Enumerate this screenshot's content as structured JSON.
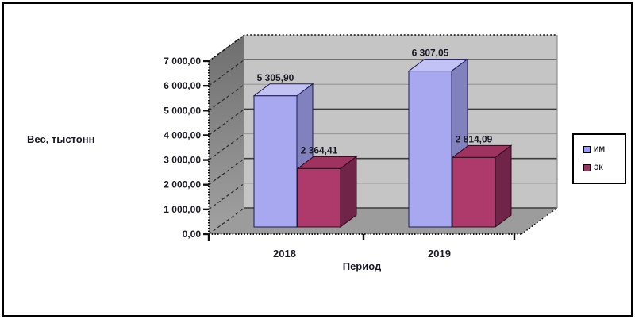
{
  "window": {
    "background": "#ffffff",
    "frame_border_color": "#000000",
    "wall_color": "#c5c5c5",
    "side_wall_color": "#8a8a8a",
    "floor_color": "#9c9c9c"
  },
  "chart_data": {
    "type": "bar",
    "style": "3d-clustered-column",
    "title": "",
    "categories": [
      "2018",
      "2019"
    ],
    "series": [
      {
        "name": "ИМ",
        "color": "#9999ff",
        "face_colors": {
          "front": "#a8a8f0",
          "top": "#c2c2f5",
          "side": "#8181bd",
          "outline": "#1c1c54"
        },
        "values": [
          5305.9,
          6307.05
        ],
        "value_labels": [
          "5 305,90",
          "6 307,05"
        ]
      },
      {
        "name": "ЭК",
        "color": "#993366",
        "face_colors": {
          "front": "#ad3a6a",
          "top": "#9e3360",
          "side": "#702447",
          "outline": "#2e0a1e"
        },
        "values": [
          2364.41,
          2814.09
        ],
        "value_labels": [
          "2 364,41",
          "2 814,09"
        ]
      }
    ],
    "xlabel": "Период",
    "ylabel": "Вес, тыстонн",
    "ylim": [
      0,
      7000
    ],
    "ytick_step": 1000,
    "ytick_labels": [
      "7 000,00",
      "6 000,00",
      "5 000,00",
      "4 000,00",
      "3 000,00",
      "2 000,00",
      "1 000,00",
      "0,00"
    ],
    "grid": true,
    "legend_position": "right",
    "legend": [
      "ИМ",
      "ЭК"
    ]
  }
}
